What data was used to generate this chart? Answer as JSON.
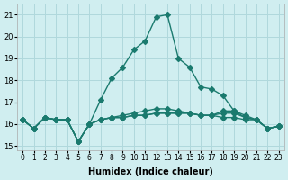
{
  "xlabel": "Humidex (Indice chaleur)",
  "ylabel": "",
  "bg_color": "#d0eef0",
  "grid_color": "#b0d8dc",
  "line_color": "#1a7a6e",
  "xlim": [
    -0.5,
    23.5
  ],
  "ylim": [
    14.8,
    21.5
  ],
  "yticks": [
    15,
    16,
    17,
    18,
    19,
    20,
    21
  ],
  "xtick_labels": [
    "0",
    "1",
    "2",
    "3",
    "4",
    "5",
    "6",
    "7",
    "8",
    "9",
    "10",
    "11",
    "12",
    "13",
    "14",
    "15",
    "16",
    "17",
    "18",
    "19",
    "20",
    "21",
    "22",
    "23"
  ],
  "line1": [
    16.2,
    15.8,
    16.3,
    16.2,
    16.2,
    15.2,
    16.0,
    17.1,
    18.1,
    18.6,
    19.4,
    19.8,
    20.9,
    21.0,
    19.0,
    18.6,
    17.7,
    17.6,
    17.3,
    16.6,
    16.3,
    16.2,
    15.8,
    15.9
  ],
  "line2": [
    16.2,
    15.8,
    16.3,
    16.2,
    16.2,
    15.2,
    16.0,
    16.2,
    16.3,
    16.4,
    16.5,
    16.6,
    16.7,
    16.7,
    16.6,
    16.5,
    16.4,
    16.4,
    16.3,
    16.3,
    16.2,
    16.2,
    15.8,
    15.9
  ],
  "line3": [
    16.2,
    15.8,
    16.3,
    16.2,
    16.2,
    15.2,
    16.0,
    16.2,
    16.3,
    16.3,
    16.4,
    16.4,
    16.5,
    16.5,
    16.5,
    16.5,
    16.4,
    16.4,
    16.6,
    16.6,
    16.4,
    16.2,
    15.8,
    15.9
  ],
  "line4": [
    16.2,
    15.8,
    16.3,
    16.2,
    16.2,
    15.2,
    16.0,
    16.2,
    16.3,
    16.3,
    16.4,
    16.4,
    16.5,
    16.5,
    16.5,
    16.5,
    16.4,
    16.4,
    16.5,
    16.5,
    16.3,
    16.2,
    15.8,
    15.9
  ]
}
